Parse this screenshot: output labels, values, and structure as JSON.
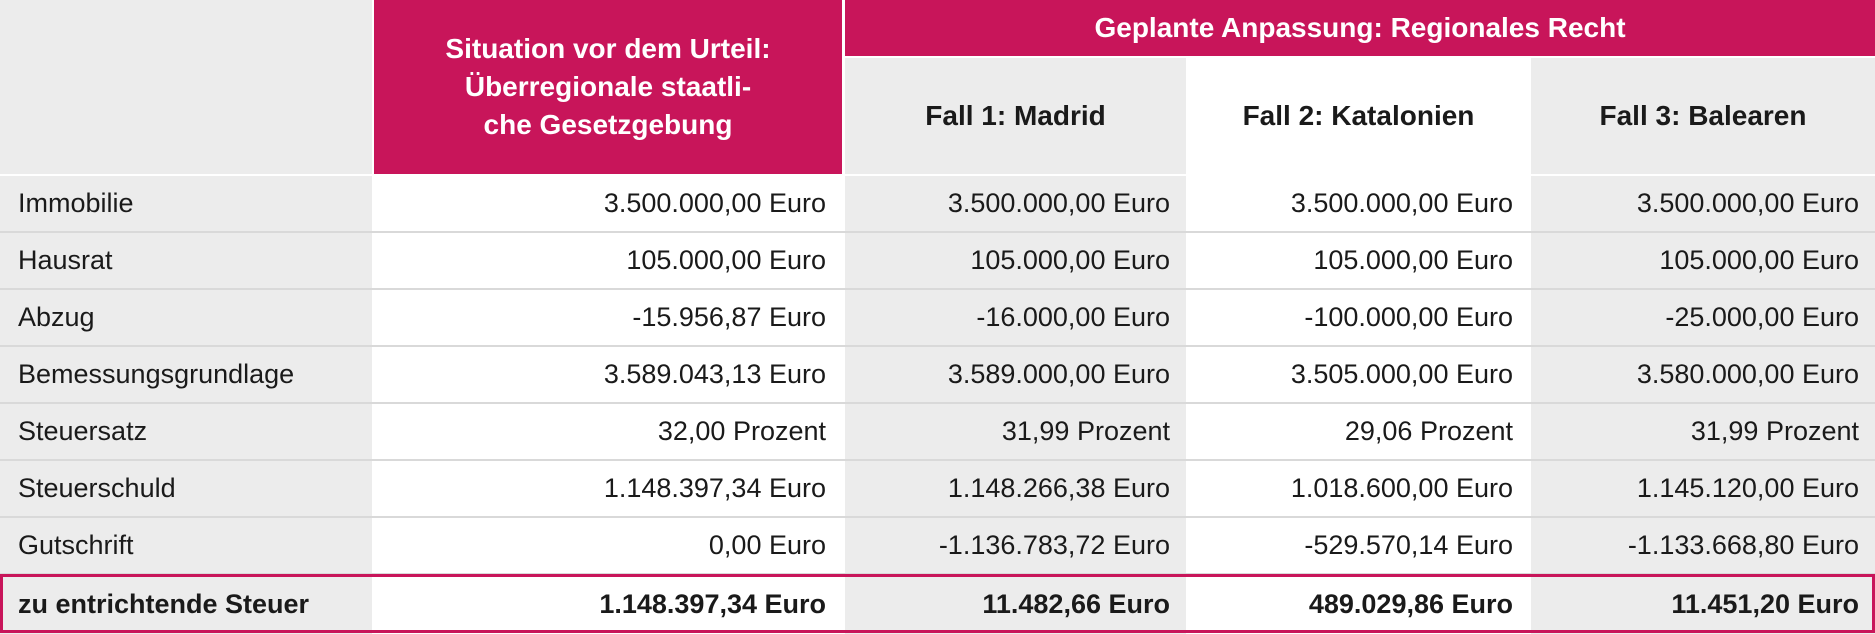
{
  "header": {
    "situation": "Situation vor dem Urteil: Überregionale staatli-che Gesetzgebung",
    "situation_lines": [
      "Situation vor dem Urteil:",
      "Überregionale staatli-",
      "che Gesetzgebung"
    ],
    "group": "Geplante Anpassung: Regionales Recht",
    "cases": [
      "Fall 1: Madrid",
      "Fall 2: Katalonien",
      "Fall 3: Balearen"
    ]
  },
  "rows": [
    {
      "label": "Immobilie",
      "values": [
        "3.500.000,00 Euro",
        "3.500.000,00 Euro",
        "3.500.000,00 Euro",
        "3.500.000,00 Euro"
      ]
    },
    {
      "label": "Hausrat",
      "values": [
        "105.000,00 Euro",
        "105.000,00 Euro",
        "105.000,00 Euro",
        "105.000,00 Euro"
      ]
    },
    {
      "label": "Abzug",
      "values": [
        "-15.956,87 Euro",
        "-16.000,00 Euro",
        "-100.000,00 Euro",
        "-25.000,00 Euro"
      ]
    },
    {
      "label": "Bemessungsgrundlage",
      "values": [
        "3.589.043,13 Euro",
        "3.589.000,00 Euro",
        "3.505.000,00 Euro",
        "3.580.000,00 Euro"
      ]
    },
    {
      "label": "Steuersatz",
      "values": [
        "32,00 Prozent",
        "31,99 Prozent",
        "29,06 Prozent",
        "31,99 Prozent"
      ]
    },
    {
      "label": "Steuerschuld",
      "values": [
        "1.148.397,34 Euro",
        "1.148.266,38 Euro",
        "1.018.600,00 Euro",
        "1.145.120,00 Euro"
      ]
    },
    {
      "label": "Gutschrift",
      "values": [
        "0,00 Euro",
        "-1.136.783,72 Euro",
        "-529.570,14 Euro",
        "-1.133.668,80 Euro"
      ]
    }
  ],
  "total": {
    "label": "zu entrichtende Steuer",
    "values": [
      "1.148.397,34 Euro",
      "11.482,66 Euro",
      "489.029,86 Euro",
      "11.451,20 Euro"
    ]
  },
  "colors": {
    "accent": "#c8155a",
    "grey": "#ececec",
    "white": "#ffffff",
    "rule": "#d9d9d9"
  }
}
